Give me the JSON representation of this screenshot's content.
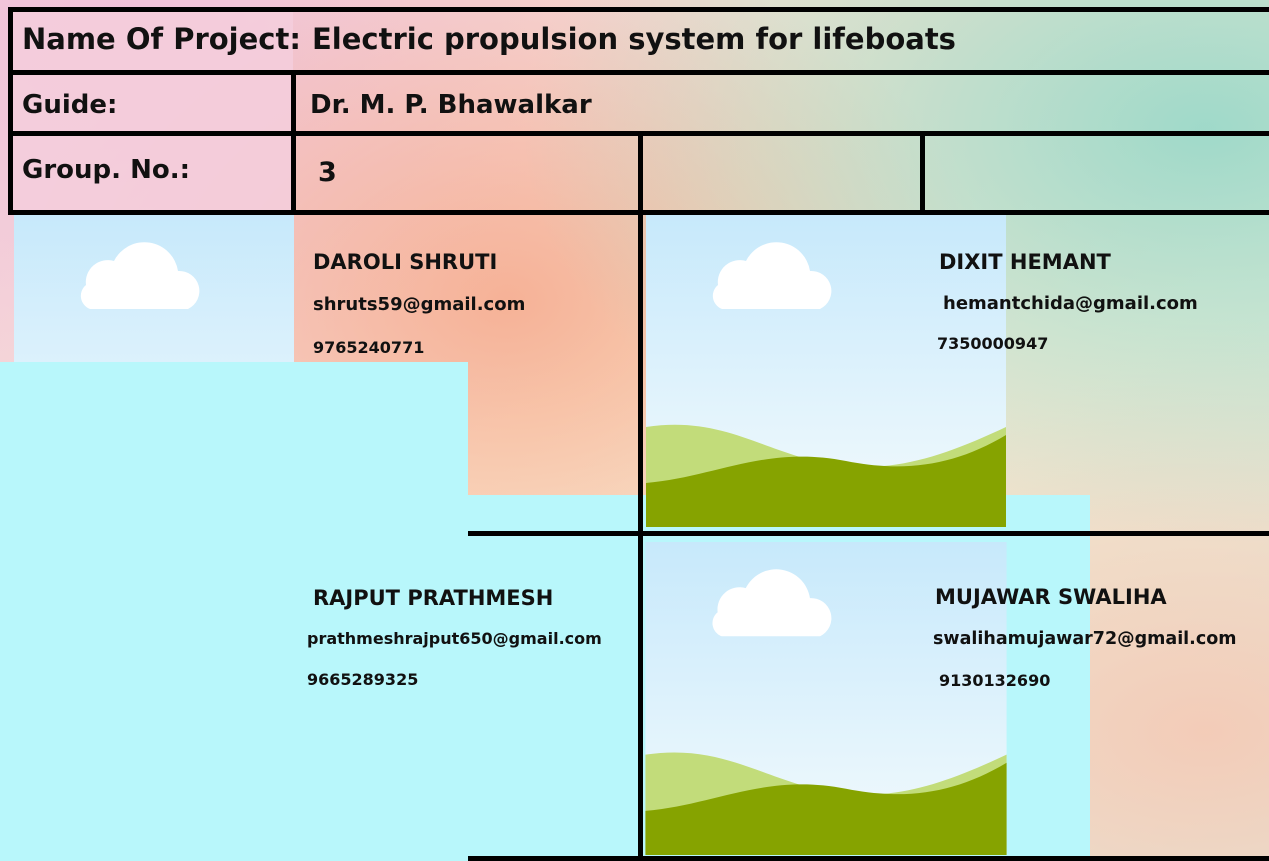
{
  "header": {
    "project_label": "Name Of Project:",
    "project": "Electric propulsion system for lifeboats",
    "guide_label": "Guide:",
    "guide": "Dr. M. P. Bhawalkar",
    "group_label": "Group. No.:",
    "group": "3"
  },
  "members": [
    {
      "name": "DAROLI SHRUTI",
      "email": "shruts59@gmail.com",
      "phone": "9765240771"
    },
    {
      "name": "DIXIT HEMANT",
      "email": "hemantchida@gmail.com",
      "phone": "7350000947"
    },
    {
      "name": "RAJPUT PRATHMESH",
      "email": "prathmeshrajput650@gmail.com",
      "phone": "9665289325"
    },
    {
      "name": "MUJAWAR SWALIHA",
      "email": "swalihamujawar72@gmail.com",
      "phone": "9130132690"
    }
  ]
}
